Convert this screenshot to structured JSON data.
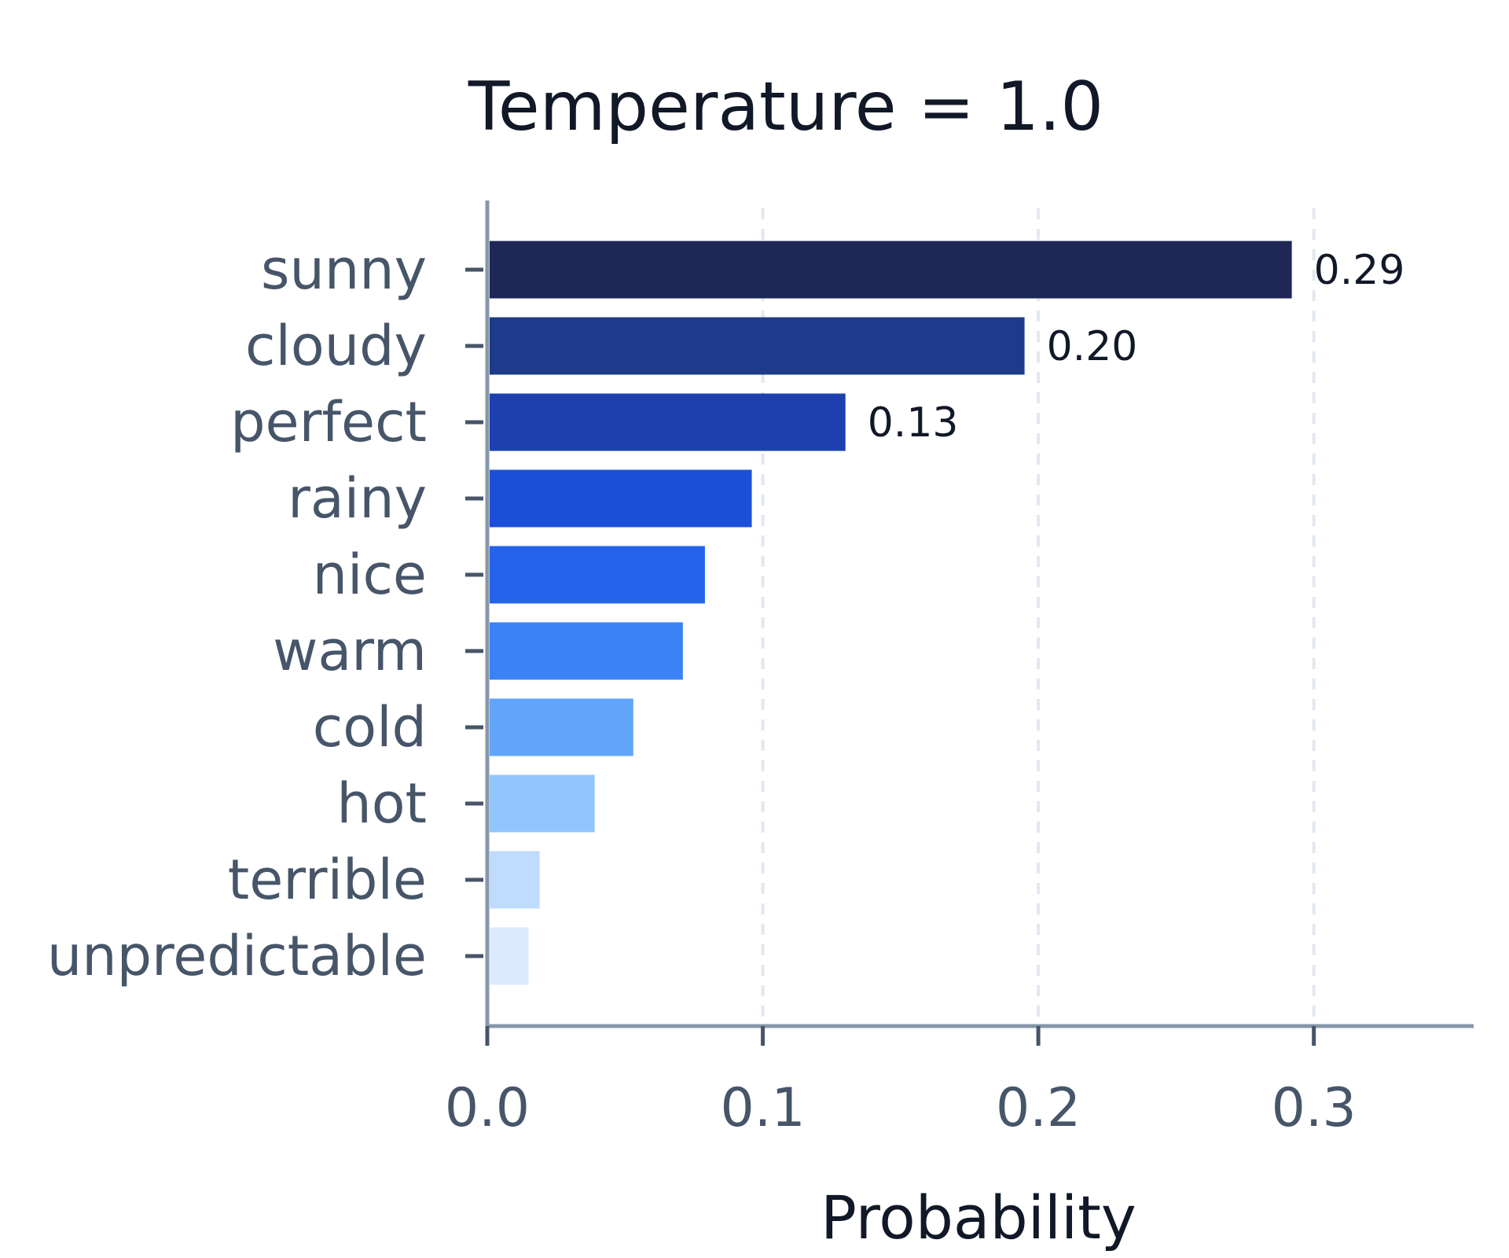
{
  "chart_data": {
    "type": "bar",
    "orientation": "horizontal",
    "title": "Temperature = 1.0",
    "xlabel": "Probability",
    "ylabel": "",
    "xlim": [
      0,
      0.358
    ],
    "x_ticks": [
      0.0,
      0.1,
      0.2,
      0.3
    ],
    "x_tick_labels": [
      "0.0",
      "0.1",
      "0.2",
      "0.3"
    ],
    "grid": "vertical dashed",
    "categories": [
      "sunny",
      "cloudy",
      "perfect",
      "rainy",
      "nice",
      "warm",
      "cold",
      "hot",
      "terrible",
      "unpredictable"
    ],
    "values": [
      0.292,
      0.195,
      0.13,
      0.096,
      0.079,
      0.071,
      0.053,
      0.039,
      0.019,
      0.015
    ],
    "data_labels": [
      {
        "category": "sunny",
        "text": "0.29"
      },
      {
        "category": "cloudy",
        "text": "0.20"
      },
      {
        "category": "perfect",
        "text": "0.13"
      }
    ],
    "colors": [
      "#1e2755",
      "#1e3a8a",
      "#1e40af",
      "#1d4ed8",
      "#2563eb",
      "#3b82f6",
      "#60a5fa",
      "#93c5fd",
      "#bfdbfe",
      "#dbeafe"
    ]
  }
}
